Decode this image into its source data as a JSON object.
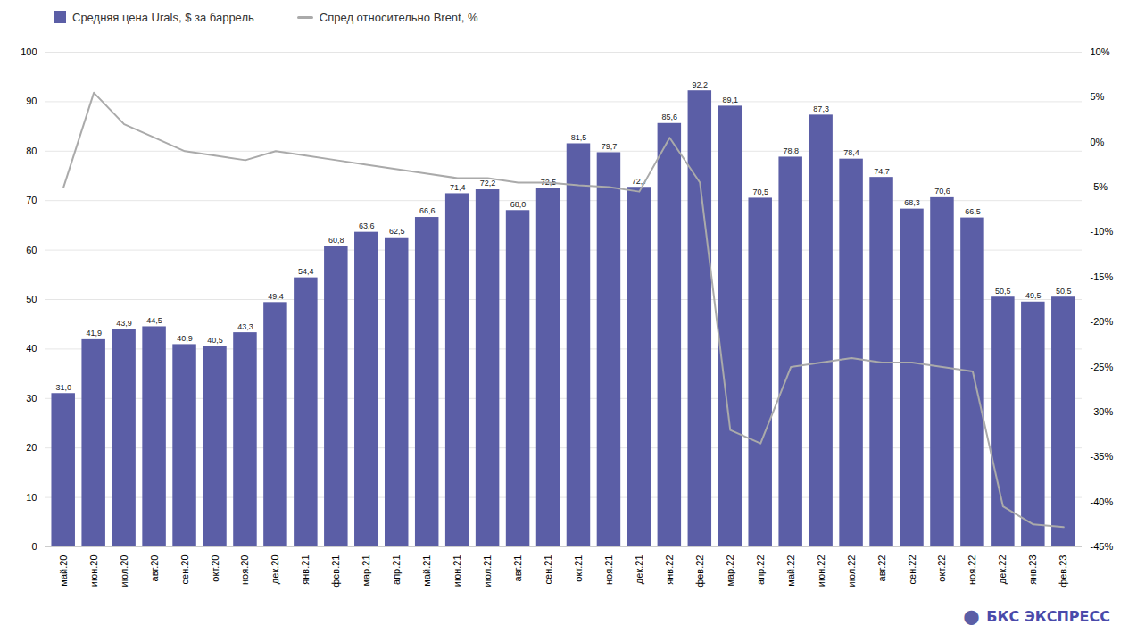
{
  "chart_data": {
    "type": "bar",
    "categories": [
      "май.20",
      "июн.20",
      "июл.20",
      "авг.20",
      "сен.20",
      "окт.20",
      "ноя.20",
      "дек.20",
      "янв.21",
      "фев.21",
      "мар.21",
      "апр.21",
      "май.21",
      "июн.21",
      "июл.21",
      "авг.21",
      "сен.21",
      "окт.21",
      "ноя.21",
      "дек.21",
      "янв.22",
      "фев.22",
      "мар.22",
      "апр.22",
      "май.22",
      "июн.22",
      "июл.22",
      "авг.22",
      "сен.22",
      "окт.22",
      "ноя.22",
      "дек.22",
      "янв.23",
      "фев.23"
    ],
    "series": [
      {
        "name": "Средняя цена Urals, $ за баррель",
        "type": "bar",
        "color": "#5b5ea6",
        "values": [
          31.0,
          41.9,
          43.9,
          44.5,
          40.9,
          40.5,
          43.3,
          49.4,
          54.4,
          60.8,
          63.6,
          62.5,
          66.6,
          71.4,
          72.2,
          68.0,
          72.5,
          81.5,
          79.7,
          72.7,
          85.6,
          92.2,
          89.1,
          70.5,
          78.8,
          87.3,
          78.4,
          74.7,
          68.3,
          70.6,
          66.5,
          50.5,
          49.5,
          50.5
        ],
        "value_labels": [
          "31,0",
          "41,9",
          "43,9",
          "44,5",
          "40,9",
          "40,5",
          "43,3",
          "49,4",
          "54,4",
          "60,8",
          "63,6",
          "62,5",
          "66,6",
          "71,4",
          "72,2",
          "68,0",
          "72,5",
          "81,5",
          "79,7",
          "72,7",
          "85,6",
          "92,2",
          "89,1",
          "70,5",
          "78,8",
          "87,3",
          "78,4",
          "74,7",
          "68,3",
          "70,6",
          "66,5",
          "50,5",
          "49,5",
          "50,5"
        ]
      },
      {
        "name": "Спред относительно Brent, %",
        "type": "line",
        "color": "#aaaaaa",
        "axis": "y2",
        "values": [
          -5.0,
          5.5,
          2.0,
          0.5,
          -1.0,
          -1.5,
          -2.0,
          -1.0,
          -1.5,
          -2.0,
          -2.5,
          -3.0,
          -3.5,
          -4.0,
          -4.0,
          -4.5,
          -4.5,
          -4.8,
          -5.0,
          -5.5,
          0.5,
          -4.5,
          -32.0,
          -33.5,
          -25.0,
          -24.5,
          -24.0,
          -24.5,
          -24.5,
          -25.0,
          -25.5,
          -40.5,
          -42.5,
          -42.8
        ]
      }
    ],
    "ylim": [
      0,
      100
    ],
    "yticks": [
      0,
      10,
      20,
      30,
      40,
      50,
      60,
      70,
      80,
      90,
      100
    ],
    "y2lim": [
      -45,
      10
    ],
    "y2ticks": [
      {
        "value": -45,
        "label": "-45%"
      },
      {
        "value": -40,
        "label": "-40%"
      },
      {
        "value": -35,
        "label": "-35%"
      },
      {
        "value": -30,
        "label": "-30%"
      },
      {
        "value": -25,
        "label": "-25%"
      },
      {
        "value": -20,
        "label": "-20%"
      },
      {
        "value": -15,
        "label": "-15%"
      },
      {
        "value": -10,
        "label": "-10%"
      },
      {
        "value": -5,
        "label": "-5%"
      },
      {
        "value": 0,
        "label": "0%"
      },
      {
        "value": 5,
        "label": "5%"
      },
      {
        "value": 10,
        "label": "10%"
      }
    ],
    "grid": true,
    "legend": "upper left",
    "data_labels": true,
    "annotations": [
      {
        "text": "⬤",
        "color": "#5b5ea6"
      },
      {
        "text": "БКС ЭКСПРЕСС",
        "color": "#4a4aaa"
      }
    ]
  }
}
